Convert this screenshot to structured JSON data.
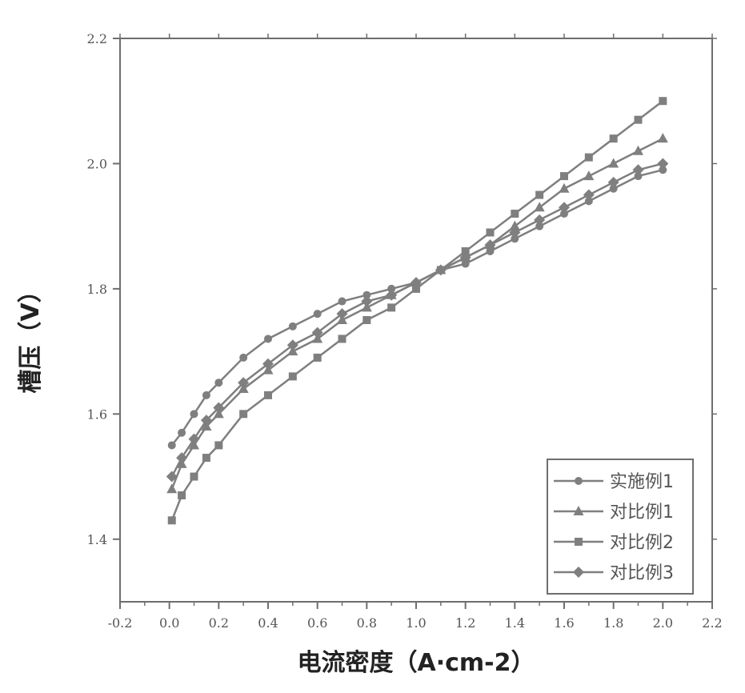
{
  "chart_data": {
    "type": "line",
    "xlabel": "电流密度（A·cm-2）",
    "ylabel": "槽压（V）",
    "xlim": [
      -0.2,
      2.2
    ],
    "ylim": [
      1.3,
      2.2
    ],
    "x_ticks": [
      "-0.2",
      "0.0",
      "0.2",
      "0.4",
      "0.6",
      "0.8",
      "1.0",
      "1.2",
      "1.4",
      "1.6",
      "1.8",
      "2.0",
      "2.2"
    ],
    "y_ticks": [
      "1.4",
      "1.6",
      "1.8",
      "2.0",
      "2.2"
    ],
    "grid": false,
    "legend_position": "bottom-right",
    "line_color": "#7f7f7f",
    "series": [
      {
        "name": "实施例1",
        "x": [
          0.01,
          0.05,
          0.1,
          0.15,
          0.2,
          0.3,
          0.4,
          0.5,
          0.6,
          0.7,
          0.8,
          0.9,
          1.0,
          1.1,
          1.2,
          1.3,
          1.4,
          1.5,
          1.6,
          1.7,
          1.8,
          1.9,
          2.0
        ],
        "y": [
          1.55,
          1.57,
          1.6,
          1.63,
          1.65,
          1.69,
          1.72,
          1.74,
          1.76,
          1.78,
          1.79,
          1.8,
          1.81,
          1.83,
          1.84,
          1.86,
          1.88,
          1.9,
          1.92,
          1.94,
          1.96,
          1.98,
          1.99
        ]
      },
      {
        "name": "对比例1",
        "x": [
          0.01,
          0.05,
          0.1,
          0.15,
          0.2,
          0.3,
          0.4,
          0.5,
          0.6,
          0.7,
          0.8,
          0.9,
          1.0,
          1.1,
          1.2,
          1.3,
          1.4,
          1.5,
          1.6,
          1.7,
          1.8,
          1.9,
          2.0
        ],
        "y": [
          1.48,
          1.52,
          1.55,
          1.58,
          1.6,
          1.64,
          1.67,
          1.7,
          1.72,
          1.75,
          1.77,
          1.79,
          1.81,
          1.83,
          1.85,
          1.87,
          1.9,
          1.93,
          1.96,
          1.98,
          2.0,
          2.02,
          2.04
        ]
      },
      {
        "name": "对比例2",
        "x": [
          0.01,
          0.05,
          0.1,
          0.15,
          0.2,
          0.3,
          0.4,
          0.5,
          0.6,
          0.7,
          0.8,
          0.9,
          1.0,
          1.1,
          1.2,
          1.3,
          1.4,
          1.5,
          1.6,
          1.7,
          1.8,
          1.9,
          2.0
        ],
        "y": [
          1.43,
          1.47,
          1.5,
          1.53,
          1.55,
          1.6,
          1.63,
          1.66,
          1.69,
          1.72,
          1.75,
          1.77,
          1.8,
          1.83,
          1.86,
          1.89,
          1.92,
          1.95,
          1.98,
          2.01,
          2.04,
          2.07,
          2.1
        ]
      },
      {
        "name": "对比例3",
        "x": [
          0.01,
          0.05,
          0.1,
          0.15,
          0.2,
          0.3,
          0.4,
          0.5,
          0.6,
          0.7,
          0.8,
          0.9,
          1.0,
          1.1,
          1.2,
          1.3,
          1.4,
          1.5,
          1.6,
          1.7,
          1.8,
          1.9,
          2.0
        ],
        "y": [
          1.5,
          1.53,
          1.56,
          1.59,
          1.61,
          1.65,
          1.68,
          1.71,
          1.73,
          1.76,
          1.78,
          1.79,
          1.81,
          1.83,
          1.85,
          1.87,
          1.89,
          1.91,
          1.93,
          1.95,
          1.97,
          1.99,
          2.0
        ]
      }
    ]
  }
}
